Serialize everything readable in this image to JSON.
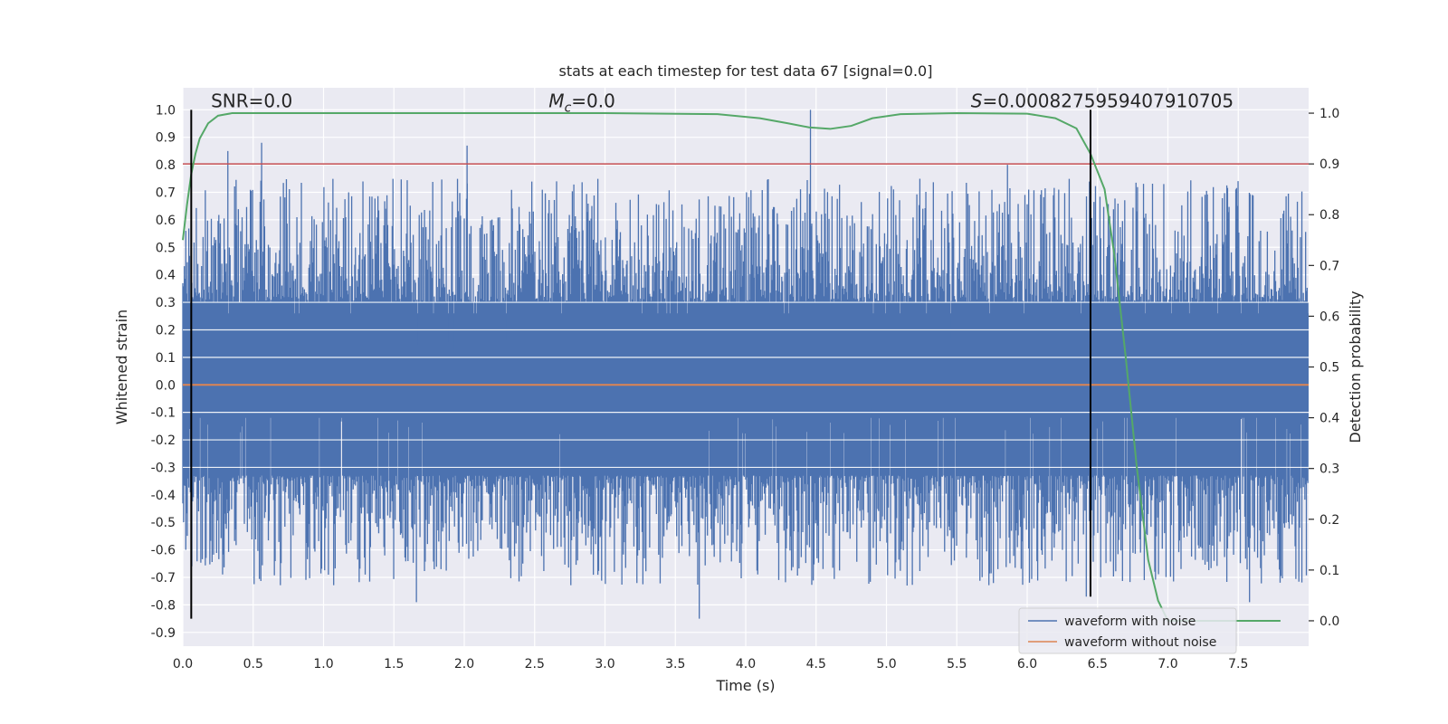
{
  "chart_data": {
    "type": "line",
    "title": "stats at each timestep for test data 67 [signal=0.0]",
    "xlabel": "Time (s)",
    "ylabel": "Whitened strain",
    "y2label": "Detection probability",
    "xlim": [
      0.0,
      8.0
    ],
    "ylim": [
      -0.95,
      1.08
    ],
    "y2lim": [
      -0.05,
      1.05
    ],
    "x_ticks": [
      0.0,
      0.5,
      1.0,
      1.5,
      2.0,
      2.5,
      3.0,
      3.5,
      4.0,
      4.5,
      5.0,
      5.5,
      6.0,
      6.5,
      7.0,
      7.5
    ],
    "x_tick_labels": [
      "0.0",
      "0.5",
      "1.0",
      "1.5",
      "2.0",
      "2.5",
      "3.0",
      "3.5",
      "4.0",
      "4.5",
      "5.0",
      "5.5",
      "6.0",
      "6.5",
      "7.0",
      "7.5"
    ],
    "y_ticks": [
      1.0,
      0.9,
      0.8,
      0.7,
      0.6,
      0.5,
      0.4,
      0.3,
      0.2,
      0.1,
      0.0,
      -0.1,
      -0.2,
      -0.3,
      -0.4,
      -0.5,
      -0.6,
      -0.7,
      -0.8,
      -0.9
    ],
    "y_tick_labels": [
      "1.0",
      "0.9",
      "0.8",
      "0.7",
      "0.6",
      "0.5",
      "0.4",
      "0.3",
      "0.2",
      "0.1",
      "0.0",
      "-0.1",
      "-0.2",
      "-0.3",
      "-0.4",
      "-0.5",
      "-0.6",
      "-0.7",
      "-0.8",
      "-0.9"
    ],
    "y2_ticks": [
      1.0,
      0.9,
      0.8,
      0.7,
      0.6,
      0.5,
      0.4,
      0.3,
      0.2,
      0.1,
      0.0
    ],
    "y2_tick_labels": [
      "1.0",
      "0.9",
      "0.8",
      "0.7",
      "0.6",
      "0.5",
      "0.4",
      "0.3",
      "0.2",
      "0.1",
      "0.0"
    ],
    "grid": true,
    "series": [
      {
        "name": "waveform with noise",
        "axis": "left",
        "color": "#4c72b0",
        "kind": "noise",
        "band_upper": 0.3,
        "band_lower": -0.33,
        "peaks": [
          {
            "x": 0.56,
            "y": 0.88
          },
          {
            "x": 2.02,
            "y": 0.87
          },
          {
            "x": 4.46,
            "y": 1.0
          },
          {
            "x": 3.67,
            "y": -0.85
          },
          {
            "x": 1.66,
            "y": -0.79
          },
          {
            "x": 6.42,
            "y": -0.77
          },
          {
            "x": 5.86,
            "y": 0.8
          },
          {
            "x": 0.32,
            "y": 0.85
          },
          {
            "x": 7.58,
            "y": -0.79
          }
        ]
      },
      {
        "name": "waveform without noise",
        "axis": "left",
        "color": "#dd8452",
        "x": [
          0.0,
          8.0
        ],
        "y": [
          0.0,
          0.0
        ]
      },
      {
        "name": "",
        "axis": "right",
        "color": "#55a868",
        "x": [
          0.0,
          0.03,
          0.06,
          0.09,
          0.12,
          0.18,
          0.25,
          0.35,
          0.5,
          1.0,
          2.0,
          3.0,
          3.8,
          4.1,
          4.3,
          4.45,
          4.6,
          4.75,
          4.9,
          5.1,
          5.5,
          6.0,
          6.2,
          6.35,
          6.45,
          6.55,
          6.62,
          6.7,
          6.78,
          6.86,
          6.93,
          7.0,
          7.2,
          7.5,
          7.8
        ],
        "y": [
          0.75,
          0.82,
          0.88,
          0.92,
          0.95,
          0.98,
          0.995,
          1.0,
          1.0,
          1.0,
          1.0,
          1.0,
          0.998,
          0.99,
          0.98,
          0.972,
          0.969,
          0.975,
          0.99,
          0.998,
          1.0,
          0.999,
          0.99,
          0.97,
          0.92,
          0.85,
          0.72,
          0.52,
          0.3,
          0.12,
          0.04,
          0.0,
          0.0,
          0.0,
          0.0
        ]
      }
    ],
    "threshold": {
      "axis": "right",
      "y": 0.9,
      "color": "#c44e52"
    },
    "vlines": [
      {
        "x": 0.06,
        "y0": -0.85,
        "y1": 1.0,
        "color": "#000000"
      },
      {
        "x": 6.45,
        "y0": -0.77,
        "y1": 1.0,
        "color": "#000000"
      }
    ],
    "annotations": [
      {
        "text": "SNR=0.0",
        "x": 0.2,
        "y": 1.01
      },
      {
        "text": "M_c=0.0",
        "x": 2.6,
        "y": 1.01
      },
      {
        "text": "S=0.0008275959407910705",
        "x": 5.6,
        "y": 1.01
      }
    ],
    "legend": {
      "position": "lower right",
      "entries": [
        "waveform with noise",
        "waveform without noise"
      ]
    }
  }
}
